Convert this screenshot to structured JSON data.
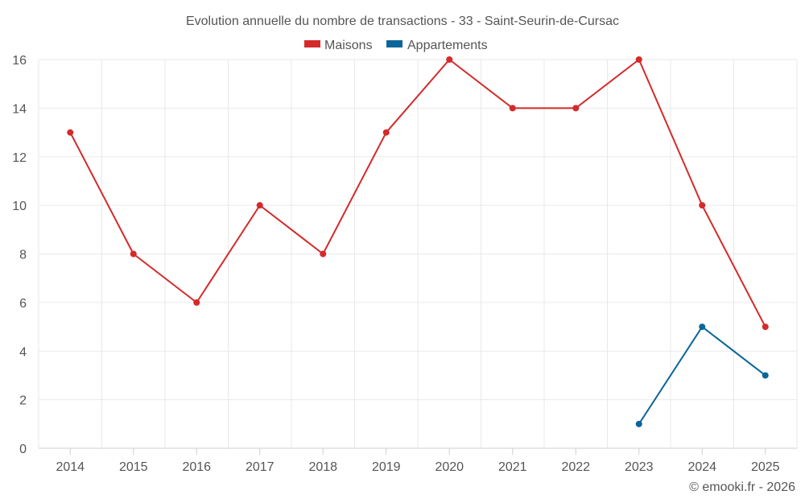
{
  "chart_data": {
    "type": "line",
    "title": "Evolution annuelle du nombre de transactions - 33 - Saint-Seurin-de-Cursac",
    "categories": [
      "2014",
      "2015",
      "2016",
      "2017",
      "2018",
      "2019",
      "2020",
      "2021",
      "2022",
      "2023",
      "2024",
      "2025"
    ],
    "series": [
      {
        "name": "Maisons",
        "color": "#d42a2a",
        "values": [
          13,
          8,
          6,
          10,
          8,
          13,
          16,
          14,
          14,
          16,
          10,
          5
        ]
      },
      {
        "name": "Appartements",
        "color": "#0a6699",
        "values": [
          null,
          null,
          null,
          null,
          null,
          null,
          null,
          null,
          null,
          1,
          5,
          3
        ]
      }
    ],
    "ylim": [
      0,
      16
    ],
    "yticks": [
      0,
      2,
      4,
      6,
      8,
      10,
      12,
      14,
      16
    ],
    "xlabel": "",
    "ylabel": "",
    "grid": true,
    "legend_position": "top-center"
  },
  "credit": "© emooki.fr - 2026"
}
